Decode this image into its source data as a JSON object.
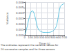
{
  "chart_data": {
    "type": "line",
    "xlabel": "Time (s)",
    "ylabel": "Variance",
    "annotations": [
      "The ordinates represent the variance values for",
      "20 successive samples and for three sensors"
    ],
    "color": "#44bbdd",
    "grid": true,
    "xlim": [
      0,
      700
    ],
    "ylim": [
      0,
      0.006
    ],
    "xticks": [
      0,
      100,
      200,
      300,
      400,
      500,
      600,
      700
    ],
    "yticks": [
      {
        "value": 0,
        "label": "0.000"
      },
      0.001,
      0.002,
      0.003,
      0.004,
      0.005,
      0.006
    ],
    "x": [
      0,
      15,
      30,
      50,
      70,
      90,
      110,
      130,
      150,
      170,
      190,
      210,
      230,
      250,
      270,
      290,
      310,
      330,
      360,
      390,
      420,
      450,
      480,
      500,
      520,
      540,
      555,
      570,
      585,
      600,
      615,
      630,
      645,
      660,
      675,
      690,
      700
    ],
    "values": [
      0.0001,
      0.0004,
      0.001,
      0.0018,
      0.0028,
      0.0036,
      0.0042,
      0.0044,
      0.0043,
      0.0038,
      0.003,
      0.002,
      0.0013,
      0.0009,
      0.0007,
      0.0006,
      0.0005,
      0.00045,
      0.00045,
      0.00045,
      0.00045,
      0.00048,
      0.0006,
      0.0007,
      0.0009,
      0.0012,
      0.0015,
      0.002,
      0.0028,
      0.0038,
      0.0046,
      0.0052,
      0.0054,
      0.0055,
      0.0056,
      0.0057,
      0.0058
    ]
  }
}
